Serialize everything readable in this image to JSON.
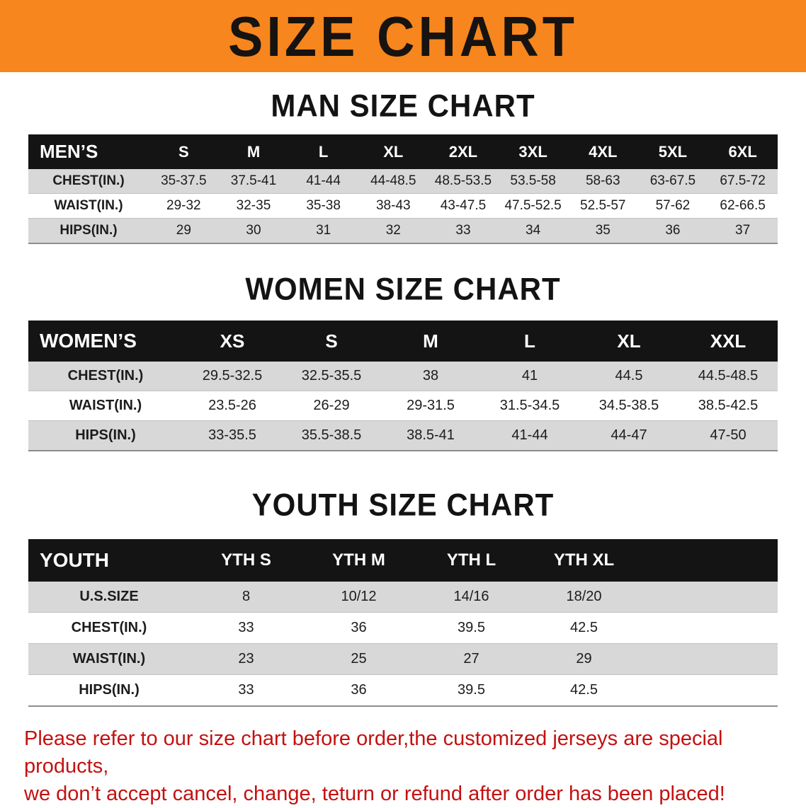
{
  "banner": {
    "title": "SIZE CHART",
    "bg_color": "#f6861d",
    "text_color": "#161311"
  },
  "colors": {
    "table_header_bg": "#141414",
    "table_header_text": "#ffffff",
    "stripe_row_bg": "#d8d8d8",
    "footer_text": "#c41111"
  },
  "sections": [
    {
      "heading": "MAN SIZE CHART",
      "table": {
        "header": [
          "MEN’S",
          "S",
          "M",
          "L",
          "XL",
          "2XL",
          "3XL",
          "4XL",
          "5XL",
          "6XL"
        ],
        "rows": [
          [
            "CHEST(IN.)",
            "35-37.5",
            "37.5-41",
            "41-44",
            "44-48.5",
            "48.5-53.5",
            "53.5-58",
            "58-63",
            "63-67.5",
            "67.5-72"
          ],
          [
            "WAIST(IN.)",
            "29-32",
            "32-35",
            "35-38",
            "38-43",
            "43-47.5",
            "47.5-52.5",
            "52.5-57",
            "57-62",
            "62-66.5"
          ],
          [
            "HIPS(IN.)",
            "29",
            "30",
            "31",
            "32",
            "33",
            "34",
            "35",
            "36",
            "37"
          ]
        ]
      }
    },
    {
      "heading": "WOMEN SIZE CHART",
      "table": {
        "header": [
          "WOMEN’S",
          "XS",
          "S",
          "M",
          "L",
          "XL",
          "XXL"
        ],
        "rows": [
          [
            "CHEST(IN.)",
            "29.5-32.5",
            "32.5-35.5",
            "38",
            "41",
            "44.5",
            "44.5-48.5"
          ],
          [
            "WAIST(IN.)",
            "23.5-26",
            "26-29",
            "29-31.5",
            "31.5-34.5",
            "34.5-38.5",
            "38.5-42.5"
          ],
          [
            "HIPS(IN.)",
            "33-35.5",
            "35.5-38.5",
            "38.5-41",
            "41-44",
            "44-47",
            "47-50"
          ]
        ]
      }
    },
    {
      "heading": "YOUTH SIZE CHART",
      "table": {
        "header": [
          "YOUTH",
          "YTH S",
          "YTH M",
          "YTH L",
          "YTH XL"
        ],
        "rows": [
          [
            "U.S.SIZE",
            "8",
            "10/12",
            "14/16",
            "18/20"
          ],
          [
            "CHEST(IN.)",
            "33",
            "36",
            "39.5",
            "42.5"
          ],
          [
            "WAIST(IN.)",
            "23",
            "25",
            "27",
            "29"
          ],
          [
            "HIPS(IN.)",
            "33",
            "36",
            "39.5",
            "42.5"
          ]
        ]
      }
    }
  ],
  "footer": {
    "line1": "Please refer to our size chart before order,the customized jerseys are special products,",
    "line2": "we don’t accept cancel, change, teturn or refund after order has been placed!"
  }
}
